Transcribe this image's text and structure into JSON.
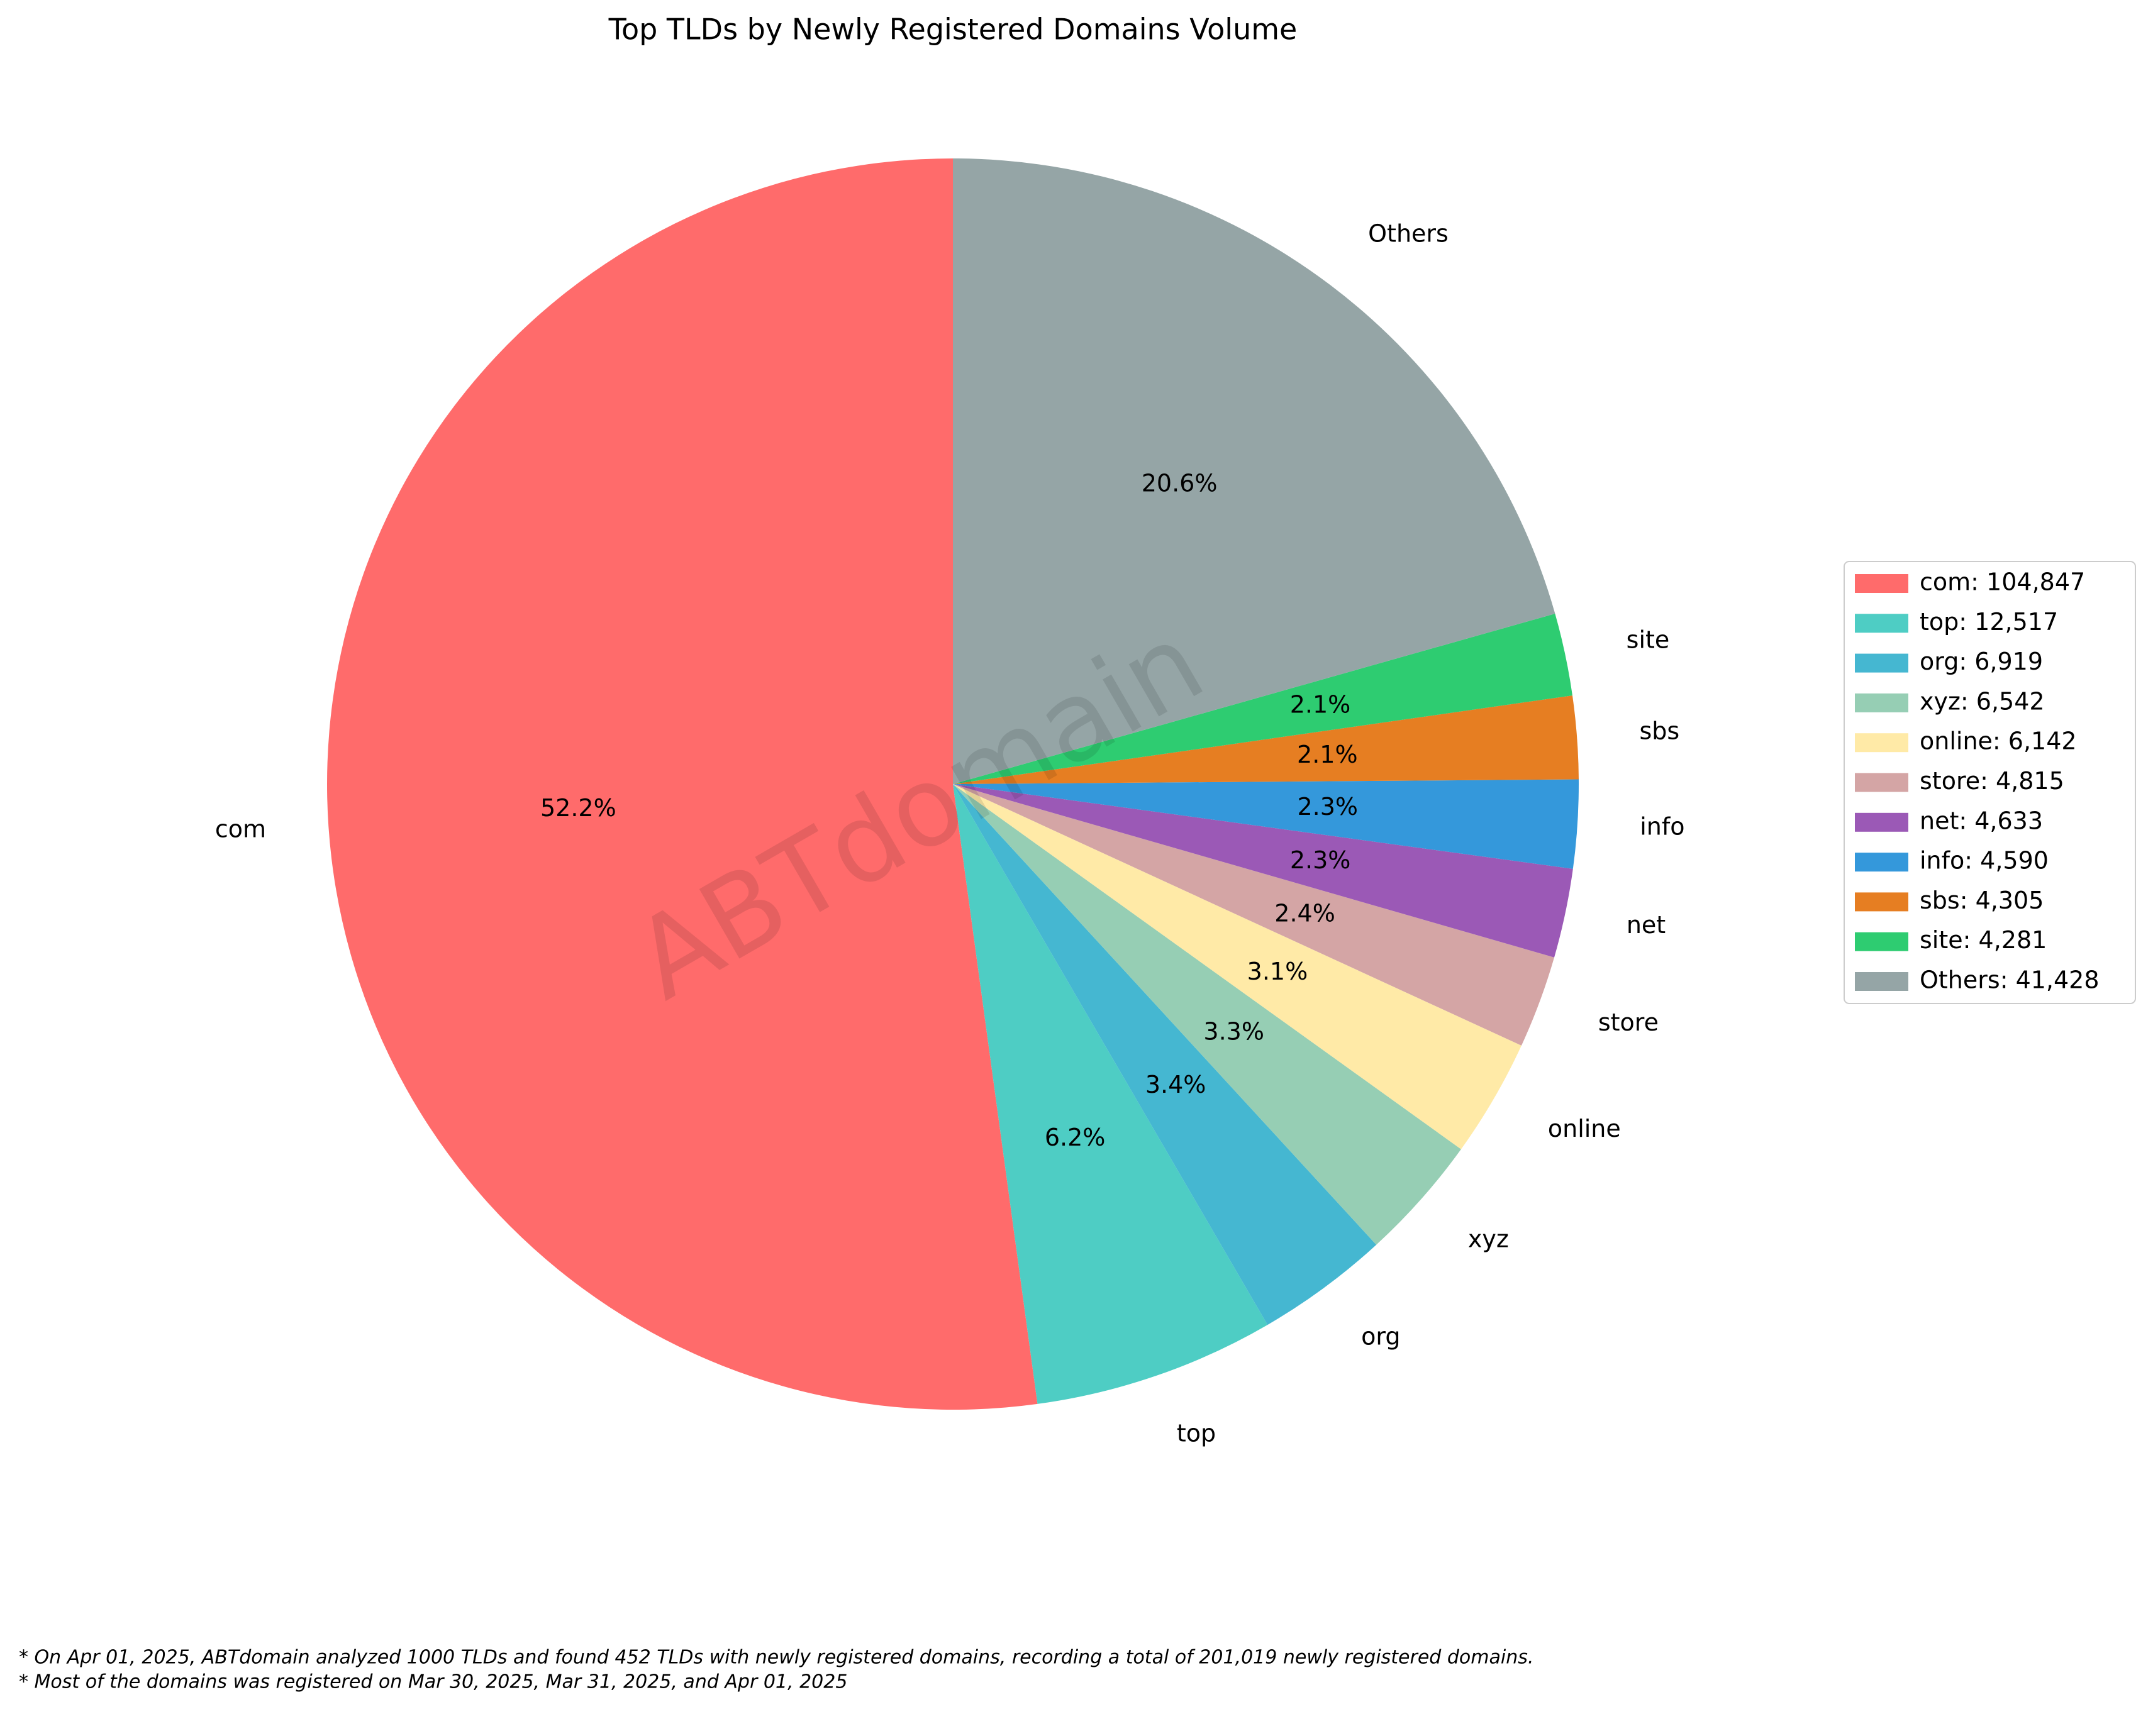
{
  "chart_data": {
    "type": "pie",
    "title": "Top TLDs by Newly Registered Domains Volume",
    "categories": [
      "com",
      "top",
      "org",
      "xyz",
      "online",
      "store",
      "net",
      "info",
      "sbs",
      "site",
      "Others"
    ],
    "values": [
      104847,
      12517,
      6919,
      6542,
      6142,
      4815,
      4633,
      4590,
      4305,
      4281,
      41428
    ],
    "percent_labels": [
      "52.2%",
      "6.2%",
      "3.4%",
      "3.3%",
      "3.1%",
      "2.4%",
      "2.3%",
      "2.3%",
      "2.1%",
      "2.1%",
      "20.6%"
    ],
    "legend_labels": [
      "com: 104,847",
      "top: 12,517",
      "org: 6,919",
      "xyz: 6,542",
      "online: 6,142",
      "store: 4,815",
      "net: 4,633",
      "info: 4,590",
      "sbs: 4,305",
      "site: 4,281",
      "Others: 41,428"
    ],
    "colors": [
      "#ff6b6b",
      "#4ecdc4",
      "#45b7d1",
      "#96ceb4",
      "#ffeaa7",
      "#d4a5a5",
      "#9b59b6",
      "#3498db",
      "#e67e22",
      "#2ecc71",
      "#95a5a6"
    ],
    "legend": "right",
    "watermark": "ABTdomain",
    "footnotes": [
      "* On Apr 01, 2025, ABTdomain analyzed 1000 TLDs and found 452 TLDs with newly registered domains, recording a total of 201,019 newly registered domains.",
      "* Most of the domains was registered on Mar 30, 2025, Mar 31, 2025, and Apr 01, 2025"
    ]
  }
}
